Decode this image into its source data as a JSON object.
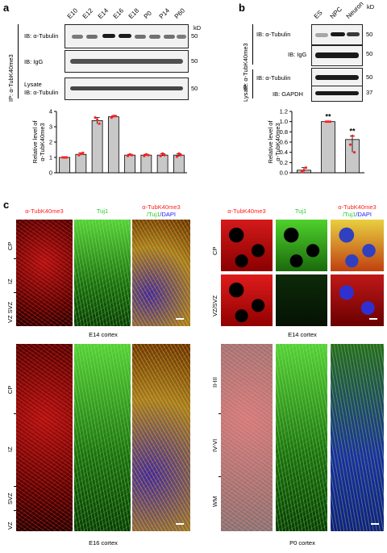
{
  "panel_a": {
    "label": "a",
    "kd": "kD",
    "lanes": [
      "E10",
      "E12",
      "E14",
      "E16",
      "E18",
      "P0",
      "P14",
      "P60"
    ],
    "ip_label": "IP: α-TubK40me3",
    "blot1_label": "IB: α-Tubulin",
    "blot2_label": "IB: IgG",
    "lysate_label": "Lysate",
    "lysate_ib_label": "IB: α-Tubulin",
    "mw1": "50",
    "mw2": "50",
    "mw3": "50"
  },
  "panel_b": {
    "label": "b",
    "kd": "kD",
    "lanes": [
      "ES",
      "NPC",
      "Neuron"
    ],
    "ip_label": "IP: α-TubK40me3",
    "blot1_label": "IB: α-Tubulin",
    "blot2_label": "IB: IgG",
    "lysate_label": "Lysate",
    "blot3_label": "IB: α-Tubulin",
    "blot4_label": "IB: GAPDH",
    "mw1": "50",
    "mw2": "50",
    "mw3": "50",
    "mw4": "37"
  },
  "panel_c": {
    "label": "c",
    "channels": [
      "α-TubK40me3",
      "Tuj1"
    ],
    "merge_line1": "α-TubK40me3",
    "merge_line2a": "/Tuj1",
    "merge_line2b": "/DAPI",
    "e14_layers": [
      "CP",
      "IZ",
      "VZ SVZ"
    ],
    "e14_caption": "E14 cortex",
    "e14z_layers": [
      "CP",
      "VZ/SVZ"
    ],
    "e14z_caption": "E14 cortex",
    "e16_layers": [
      "CP",
      "IZ",
      "SVZ",
      "VZ"
    ],
    "e16_caption": "E16 cortex",
    "p0_layers": [
      "II-III",
      "IV-VI",
      "WM"
    ],
    "p0_caption": "P0 cortex"
  },
  "colors": {
    "red": "#ff2020",
    "green": "#22cc22",
    "blue": "#2020ff",
    "bar": "#c8c8c8"
  },
  "chart_data": [
    {
      "type": "bar",
      "categories": [
        "E10",
        "E12",
        "E14",
        "E16",
        "E18",
        "P0",
        "P14",
        "P60"
      ],
      "values": [
        1.0,
        1.2,
        3.4,
        3.65,
        1.15,
        1.15,
        1.15,
        1.15
      ],
      "points": [
        [
          1.0,
          1.0,
          1.0
        ],
        [
          1.15,
          1.25,
          1.3
        ],
        [
          3.6,
          3.45,
          3.2
        ],
        [
          3.6,
          3.7,
          3.7
        ],
        [
          1.1,
          1.2,
          1.15
        ],
        [
          1.1,
          1.2,
          1.15
        ],
        [
          1.1,
          1.25,
          1.15
        ],
        [
          1.05,
          1.25,
          1.15
        ]
      ],
      "ylabel": "Relative level of α-TubK40me3",
      "yticks": [
        "0",
        "1",
        "2",
        "3",
        "4"
      ],
      "ylim": [
        0,
        4
      ],
      "sig": []
    },
    {
      "type": "bar",
      "categories": [
        "ES",
        "NPC",
        "Neuron"
      ],
      "values": [
        0.05,
        1.0,
        0.65
      ],
      "points": [
        [
          0.02,
          0.05,
          0.1
        ],
        [
          1.0,
          1.0,
          1.0
        ],
        [
          0.55,
          0.72,
          0.4
        ]
      ],
      "ylabel": "Relative level of α-TubK40me3",
      "yticks": [
        "0.0",
        "0.2",
        "0.4",
        "0.6",
        "0.8",
        "1.0",
        "1.2"
      ],
      "ylim": [
        0,
        1.2
      ],
      "sig": [
        "",
        "**",
        "**"
      ]
    }
  ]
}
